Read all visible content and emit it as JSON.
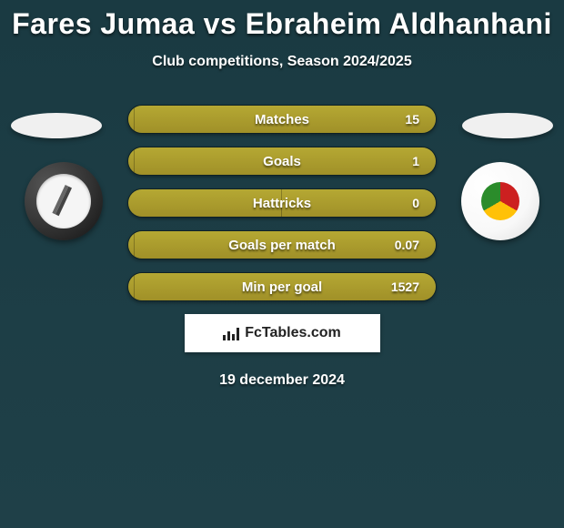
{
  "title": "Fares Jumaa vs Ebraheim Aldhanhani",
  "subtitle": "Club competitions, Season 2024/2025",
  "stats": [
    {
      "label": "Matches",
      "value": "15",
      "leftPct": 2,
      "rightPct": 98
    },
    {
      "label": "Goals",
      "value": "1",
      "leftPct": 2,
      "rightPct": 98
    },
    {
      "label": "Hattricks",
      "value": "0",
      "leftPct": 50,
      "rightPct": 50
    },
    {
      "label": "Goals per match",
      "value": "0.07",
      "leftPct": 2,
      "rightPct": 98
    },
    {
      "label": "Min per goal",
      "value": "1527",
      "leftPct": 2,
      "rightPct": 98
    }
  ],
  "site": "FcTables.com",
  "date": "19 december 2024",
  "colors": {
    "bar": "#a99c2d",
    "bg": "#1d3e46"
  }
}
